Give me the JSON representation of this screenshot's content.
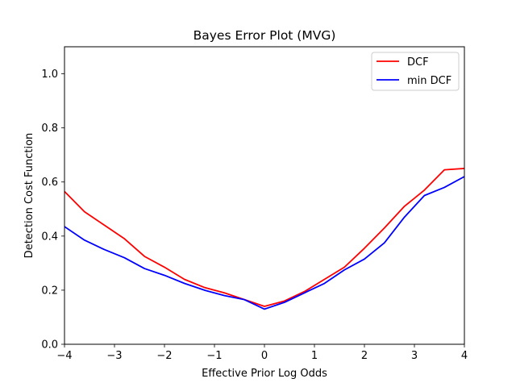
{
  "chart_data": {
    "type": "line",
    "title": "Bayes Error Plot (MVG)",
    "xlabel": "Effective Prior Log Odds",
    "ylabel": "Detection Cost Function",
    "xlim": [
      -4,
      4
    ],
    "ylim": [
      0,
      1.1
    ],
    "xticks": [
      -4,
      -3,
      -2,
      -1,
      0,
      1,
      2,
      3,
      4
    ],
    "xtick_labels": [
      "−4",
      "−3",
      "−2",
      "−1",
      "0",
      "1",
      "2",
      "3",
      "4"
    ],
    "yticks": [
      0.0,
      0.2,
      0.4,
      0.6,
      0.8,
      1.0
    ],
    "ytick_labels": [
      "0.0",
      "0.2",
      "0.4",
      "0.6",
      "0.8",
      "1.0"
    ],
    "grid": false,
    "legend_position": "top-right",
    "x": [
      -4.0,
      -3.6,
      -3.2,
      -2.8,
      -2.4,
      -2.0,
      -1.6,
      -1.2,
      -0.8,
      -0.4,
      0.0,
      0.4,
      0.8,
      1.2,
      1.6,
      2.0,
      2.4,
      2.8,
      3.2,
      3.6,
      4.0
    ],
    "series": [
      {
        "name": "DCF",
        "color": "#ff0000",
        "values": [
          0.565,
          0.49,
          0.44,
          0.39,
          0.325,
          0.285,
          0.24,
          0.21,
          0.19,
          0.165,
          0.14,
          0.16,
          0.195,
          0.24,
          0.285,
          0.355,
          0.43,
          0.51,
          0.57,
          0.645,
          0.65
        ]
      },
      {
        "name": "min DCF",
        "color": "#0000ff",
        "values": [
          0.435,
          0.385,
          0.35,
          0.32,
          0.28,
          0.255,
          0.225,
          0.2,
          0.18,
          0.165,
          0.13,
          0.155,
          0.19,
          0.225,
          0.275,
          0.315,
          0.375,
          0.47,
          0.55,
          0.58,
          0.62
        ]
      }
    ]
  }
}
